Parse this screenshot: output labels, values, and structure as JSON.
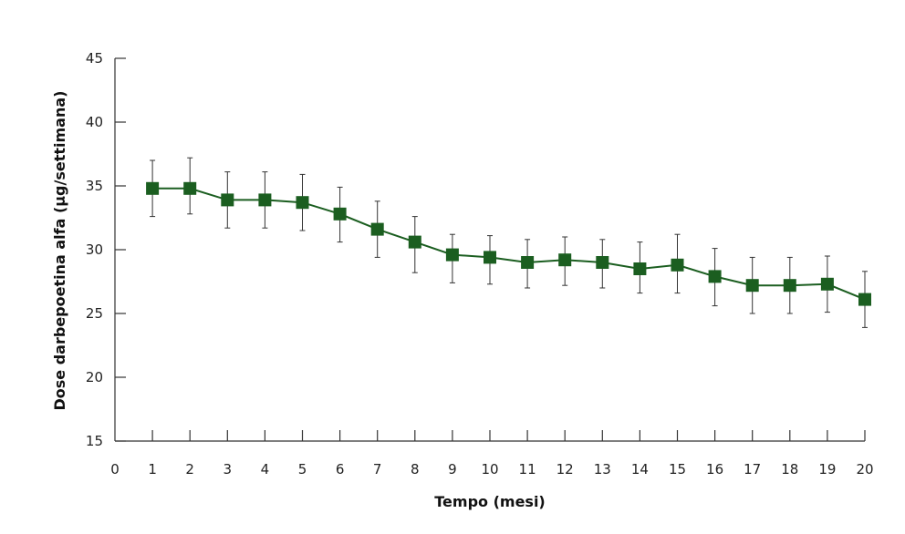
{
  "chart_data": {
    "type": "line",
    "xlabel": "Tempo (mesi)",
    "ylabel": "Dose darbepoetina alfa (μg/settimana)",
    "xlim": [
      0,
      20
    ],
    "ylim": [
      15,
      45
    ],
    "x_ticks": [
      0,
      1,
      2,
      3,
      4,
      5,
      6,
      7,
      8,
      9,
      10,
      11,
      12,
      13,
      14,
      15,
      16,
      17,
      18,
      19,
      20
    ],
    "y_ticks": [
      15,
      20,
      25,
      30,
      35,
      40,
      45
    ],
    "grid": false,
    "legend": false,
    "colors": {
      "series": "#1b5e20",
      "axis": "#333333",
      "errorbar": "#333333"
    },
    "series": [
      {
        "marker": "square",
        "x": [
          1,
          2,
          3,
          4,
          5,
          6,
          7,
          8,
          9,
          10,
          11,
          12,
          13,
          14,
          15,
          16,
          17,
          18,
          19,
          20
        ],
        "y": [
          34.8,
          34.8,
          33.9,
          33.9,
          33.7,
          32.8,
          31.6,
          30.6,
          29.6,
          29.4,
          29.0,
          29.2,
          29.0,
          28.5,
          28.8,
          27.9,
          27.2,
          27.2,
          27.3,
          26.1
        ],
        "error_upper": [
          37.0,
          37.2,
          36.1,
          36.1,
          35.9,
          34.9,
          33.8,
          32.6,
          31.2,
          31.1,
          30.8,
          31.0,
          30.8,
          30.6,
          31.2,
          30.1,
          29.4,
          29.4,
          29.5,
          28.3
        ],
        "error_lower": [
          32.6,
          32.8,
          31.7,
          31.7,
          31.5,
          30.6,
          29.4,
          28.2,
          27.4,
          27.3,
          27.0,
          27.2,
          27.0,
          26.6,
          26.6,
          25.6,
          25.0,
          25.0,
          25.1,
          23.9
        ]
      }
    ]
  }
}
